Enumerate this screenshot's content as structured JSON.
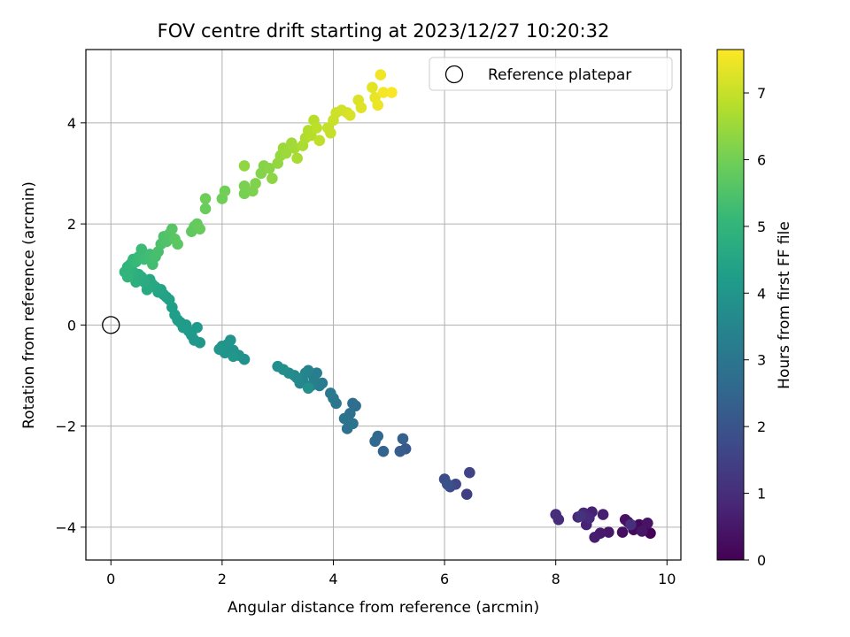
{
  "chart_data": {
    "type": "scatter",
    "title": "FOV centre drift starting at 2023/12/27 10:20:32",
    "xlabel": "Angular distance from reference (arcmin)",
    "ylabel": "Rotation from reference (arcmin)",
    "xlim": [
      -0.45,
      10.25
    ],
    "ylim": [
      -4.65,
      5.45
    ],
    "xticks": [
      0,
      2,
      4,
      6,
      8,
      10
    ],
    "yticks": [
      -4,
      -2,
      0,
      2,
      4
    ],
    "xtick_labels": [
      "0",
      "2",
      "4",
      "6",
      "8",
      "10"
    ],
    "ytick_labels": [
      "−4",
      "−2",
      "0",
      "2",
      "4"
    ],
    "grid": true,
    "legend": {
      "placement": "top-right",
      "entries": [
        {
          "label": "Reference platepar",
          "marker": "open-circle"
        }
      ]
    },
    "reference_point": {
      "x": 0,
      "y": 0
    },
    "colorbar": {
      "label": "Hours from first FF file",
      "colormap": "viridis",
      "range": [
        0,
        7.65
      ],
      "ticks": [
        0,
        1,
        2,
        3,
        4,
        5,
        6,
        7
      ],
      "tick_labels": [
        "0",
        "1",
        "2",
        "3",
        "4",
        "5",
        "6",
        "7"
      ]
    },
    "points_xyc": [
      [
        9.7,
        -4.12,
        0.05
      ],
      [
        9.6,
        -4.0,
        0.1
      ],
      [
        9.5,
        -3.95,
        0.15
      ],
      [
        9.4,
        -4.05,
        0.2
      ],
      [
        9.3,
        -3.9,
        0.25
      ],
      [
        9.2,
        -4.1,
        0.3
      ],
      [
        9.25,
        -3.85,
        0.35
      ],
      [
        9.65,
        -3.92,
        0.4
      ],
      [
        9.55,
        -4.08,
        0.45
      ],
      [
        8.95,
        -4.1,
        0.5
      ],
      [
        8.8,
        -4.12,
        0.55
      ],
      [
        8.7,
        -4.2,
        0.6
      ],
      [
        8.85,
        -3.75,
        0.65
      ],
      [
        8.65,
        -3.7,
        0.7
      ],
      [
        8.55,
        -3.95,
        0.75
      ],
      [
        8.4,
        -3.8,
        0.8
      ],
      [
        8.5,
        -3.72,
        0.85
      ],
      [
        8.6,
        -3.82,
        0.9
      ],
      [
        8.05,
        -3.85,
        0.95
      ],
      [
        8.0,
        -3.75,
        1.0
      ],
      [
        9.35,
        -3.95,
        1.05
      ],
      [
        8.45,
        -3.78,
        1.1
      ],
      [
        6.4,
        -3.35,
        1.45
      ],
      [
        6.45,
        -2.92,
        1.55
      ],
      [
        6.2,
        -3.15,
        1.65
      ],
      [
        6.1,
        -3.2,
        1.75
      ],
      [
        6.0,
        -3.05,
        1.85
      ],
      [
        6.05,
        -3.15,
        1.95
      ],
      [
        5.3,
        -2.45,
        2.15
      ],
      [
        5.2,
        -2.5,
        2.25
      ],
      [
        5.25,
        -2.25,
        2.35
      ],
      [
        4.9,
        -2.5,
        2.45
      ],
      [
        4.8,
        -2.2,
        2.55
      ],
      [
        4.75,
        -2.3,
        2.6
      ],
      [
        4.4,
        -1.6,
        2.7
      ],
      [
        4.35,
        -1.55,
        2.75
      ],
      [
        4.3,
        -1.75,
        2.8
      ],
      [
        4.25,
        -2.05,
        2.85
      ],
      [
        4.35,
        -1.95,
        2.9
      ],
      [
        4.2,
        -1.85,
        2.95
      ],
      [
        4.05,
        -1.55,
        3.0
      ],
      [
        4.0,
        -1.45,
        3.05
      ],
      [
        3.95,
        -1.35,
        3.1
      ],
      [
        3.8,
        -1.15,
        3.15
      ],
      [
        3.75,
        -1.2,
        3.2
      ],
      [
        3.7,
        -0.95,
        3.25
      ],
      [
        3.65,
        -1.05,
        3.3
      ],
      [
        3.6,
        -1.2,
        3.35
      ],
      [
        3.55,
        -0.9,
        3.4
      ],
      [
        3.5,
        -0.95,
        3.45
      ],
      [
        3.45,
        -1.1,
        3.5
      ],
      [
        3.4,
        -1.15,
        3.55
      ],
      [
        3.35,
        -1.05,
        3.6
      ],
      [
        3.3,
        -1.0,
        3.65
      ],
      [
        3.2,
        -0.95,
        3.7
      ],
      [
        3.1,
        -0.88,
        3.75
      ],
      [
        3.0,
        -0.82,
        3.8
      ],
      [
        3.55,
        -1.25,
        3.82
      ],
      [
        2.4,
        -0.68,
        3.85
      ],
      [
        2.3,
        -0.6,
        3.88
      ],
      [
        2.2,
        -0.5,
        3.9
      ],
      [
        2.1,
        -0.38,
        3.92
      ],
      [
        2.15,
        -0.3,
        3.94
      ],
      [
        2.05,
        -0.55,
        3.96
      ],
      [
        2.0,
        -0.42,
        3.98
      ],
      [
        1.95,
        -0.48,
        4.0
      ],
      [
        2.2,
        -0.62,
        4.02
      ],
      [
        1.6,
        -0.35,
        4.05
      ],
      [
        1.5,
        -0.3,
        4.08
      ],
      [
        1.45,
        -0.2,
        4.1
      ],
      [
        1.55,
        -0.05,
        4.12
      ],
      [
        1.4,
        -0.12,
        4.14
      ],
      [
        1.35,
        0.0,
        4.16
      ],
      [
        1.3,
        -0.05,
        4.18
      ],
      [
        1.25,
        0.05,
        4.2
      ],
      [
        1.2,
        0.1,
        4.22
      ],
      [
        1.15,
        0.2,
        4.25
      ],
      [
        1.1,
        0.35,
        4.28
      ],
      [
        1.05,
        0.5,
        4.32
      ],
      [
        1.0,
        0.55,
        4.36
      ],
      [
        0.95,
        0.6,
        4.4
      ],
      [
        0.9,
        0.7,
        4.45
      ],
      [
        0.85,
        0.65,
        4.48
      ],
      [
        0.8,
        0.75,
        4.52
      ],
      [
        0.75,
        0.8,
        4.56
      ],
      [
        0.7,
        0.9,
        4.6
      ],
      [
        0.65,
        0.7,
        4.64
      ],
      [
        0.6,
        0.85,
        4.68
      ],
      [
        0.55,
        0.95,
        4.72
      ],
      [
        0.5,
        1.0,
        4.76
      ],
      [
        0.45,
        0.85,
        4.8
      ],
      [
        0.4,
        1.05,
        4.84
      ],
      [
        0.35,
        1.1,
        4.88
      ],
      [
        0.3,
        1.15,
        4.92
      ],
      [
        0.25,
        1.05,
        4.96
      ],
      [
        0.3,
        0.95,
        5.0
      ],
      [
        0.35,
        1.2,
        5.04
      ],
      [
        0.4,
        1.3,
        5.08
      ],
      [
        0.45,
        1.25,
        5.12
      ],
      [
        0.5,
        1.35,
        5.16
      ],
      [
        0.55,
        1.5,
        5.2
      ],
      [
        0.6,
        1.3,
        5.24
      ],
      [
        0.7,
        1.4,
        5.28
      ],
      [
        0.75,
        1.2,
        5.32
      ],
      [
        0.8,
        1.35,
        5.36
      ],
      [
        0.85,
        1.45,
        5.4
      ],
      [
        0.9,
        1.6,
        5.44
      ],
      [
        0.95,
        1.75,
        5.48
      ],
      [
        1.0,
        1.65,
        5.52
      ],
      [
        1.05,
        1.8,
        5.56
      ],
      [
        1.1,
        1.9,
        5.6
      ],
      [
        1.15,
        1.7,
        5.64
      ],
      [
        1.2,
        1.6,
        5.68
      ],
      [
        1.45,
        1.85,
        5.72
      ],
      [
        1.5,
        1.95,
        5.76
      ],
      [
        1.55,
        2.0,
        5.8
      ],
      [
        1.6,
        1.9,
        5.84
      ],
      [
        1.7,
        2.3,
        5.88
      ],
      [
        1.7,
        2.5,
        5.92
      ],
      [
        2.0,
        2.5,
        5.96
      ],
      [
        2.05,
        2.65,
        6.0
      ],
      [
        2.4,
        2.6,
        6.04
      ],
      [
        2.4,
        2.75,
        6.08
      ],
      [
        2.55,
        2.65,
        6.12
      ],
      [
        2.6,
        2.8,
        6.16
      ],
      [
        2.7,
        3.0,
        6.2
      ],
      [
        2.75,
        3.15,
        6.24
      ],
      [
        2.85,
        3.1,
        6.28
      ],
      [
        2.9,
        2.9,
        6.32
      ],
      [
        2.4,
        3.15,
        6.36
      ],
      [
        3.0,
        3.2,
        6.4
      ],
      [
        3.05,
        3.35,
        6.44
      ],
      [
        3.1,
        3.5,
        6.48
      ],
      [
        3.15,
        3.4,
        6.52
      ],
      [
        3.25,
        3.6,
        6.56
      ],
      [
        3.3,
        3.5,
        6.6
      ],
      [
        3.35,
        3.3,
        6.64
      ],
      [
        3.45,
        3.55,
        6.68
      ],
      [
        3.5,
        3.7,
        6.72
      ],
      [
        3.55,
        3.85,
        6.76
      ],
      [
        3.6,
        3.75,
        6.8
      ],
      [
        3.65,
        4.05,
        6.84
      ],
      [
        3.7,
        3.9,
        6.88
      ],
      [
        3.75,
        3.65,
        6.92
      ],
      [
        3.9,
        3.9,
        6.96
      ],
      [
        3.95,
        3.8,
        7.0
      ],
      [
        4.0,
        4.05,
        7.04
      ],
      [
        4.05,
        4.2,
        7.08
      ],
      [
        4.15,
        4.25,
        7.12
      ],
      [
        4.25,
        4.2,
        7.16
      ],
      [
        4.3,
        4.15,
        7.2
      ],
      [
        4.45,
        4.45,
        7.25
      ],
      [
        4.5,
        4.3,
        7.3
      ],
      [
        4.7,
        4.7,
        7.35
      ],
      [
        4.75,
        4.5,
        7.4
      ],
      [
        4.8,
        4.35,
        7.45
      ],
      [
        4.85,
        4.95,
        7.5
      ],
      [
        4.9,
        4.6,
        7.55
      ],
      [
        5.05,
        4.6,
        7.6
      ]
    ]
  }
}
